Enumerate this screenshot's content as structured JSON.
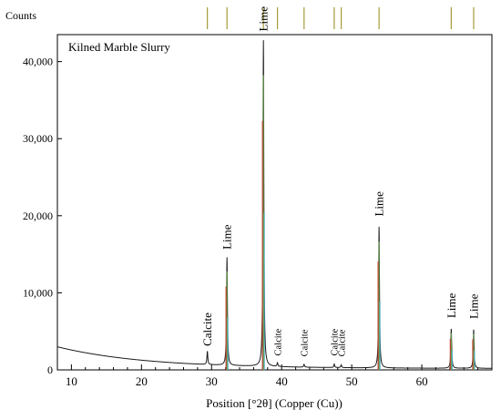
{
  "chart_data": {
    "type": "line",
    "title": "Kilned Marble Slurry",
    "ylabel_top": "Counts",
    "xlabel": "Position [°2θ] (Copper (Cu))",
    "xlim": [
      8,
      70
    ],
    "ylim": [
      0,
      43500
    ],
    "xticks": [
      10,
      20,
      30,
      40,
      50,
      60
    ],
    "yticks": [
      0,
      10000,
      20000,
      30000,
      40000
    ],
    "ytick_labels": [
      "0",
      "10,000",
      "20,000",
      "30,000",
      "40,000"
    ],
    "reference_lines_2theta": [
      29.4,
      32.2,
      37.4,
      39.4,
      43.2,
      47.5,
      48.5,
      53.9,
      64.2,
      67.4
    ],
    "peaks": [
      {
        "label": "Calcite",
        "x": 29.4,
        "y": 1900
      },
      {
        "label": "Lime",
        "x": 32.2,
        "y": 14200
      },
      {
        "label": "Lime",
        "x": 37.4,
        "y": 42500
      },
      {
        "label": "Calcite",
        "x": 39.4,
        "y": 650
      },
      {
        "label": "Calcite",
        "x": 43.2,
        "y": 550
      },
      {
        "label": "Calcite",
        "x": 47.5,
        "y": 650
      },
      {
        "label": "Calcite",
        "x": 48.5,
        "y": 550
      },
      {
        "label": "Lime",
        "x": 53.9,
        "y": 18500
      },
      {
        "label": "Lime",
        "x": 64.2,
        "y": 5300
      },
      {
        "label": "Lime",
        "x": 67.4,
        "y": 5200
      }
    ],
    "baseline": {
      "start": 3000,
      "decay": 0.08,
      "floor": 180
    }
  },
  "colors": {
    "pattern": "#1a1a1a",
    "fit": "#6aa84f",
    "peak_accent_red": "#c0392b",
    "peak_accent_cyan": "#4aa8c8",
    "ref_line": "#a59a3a"
  }
}
